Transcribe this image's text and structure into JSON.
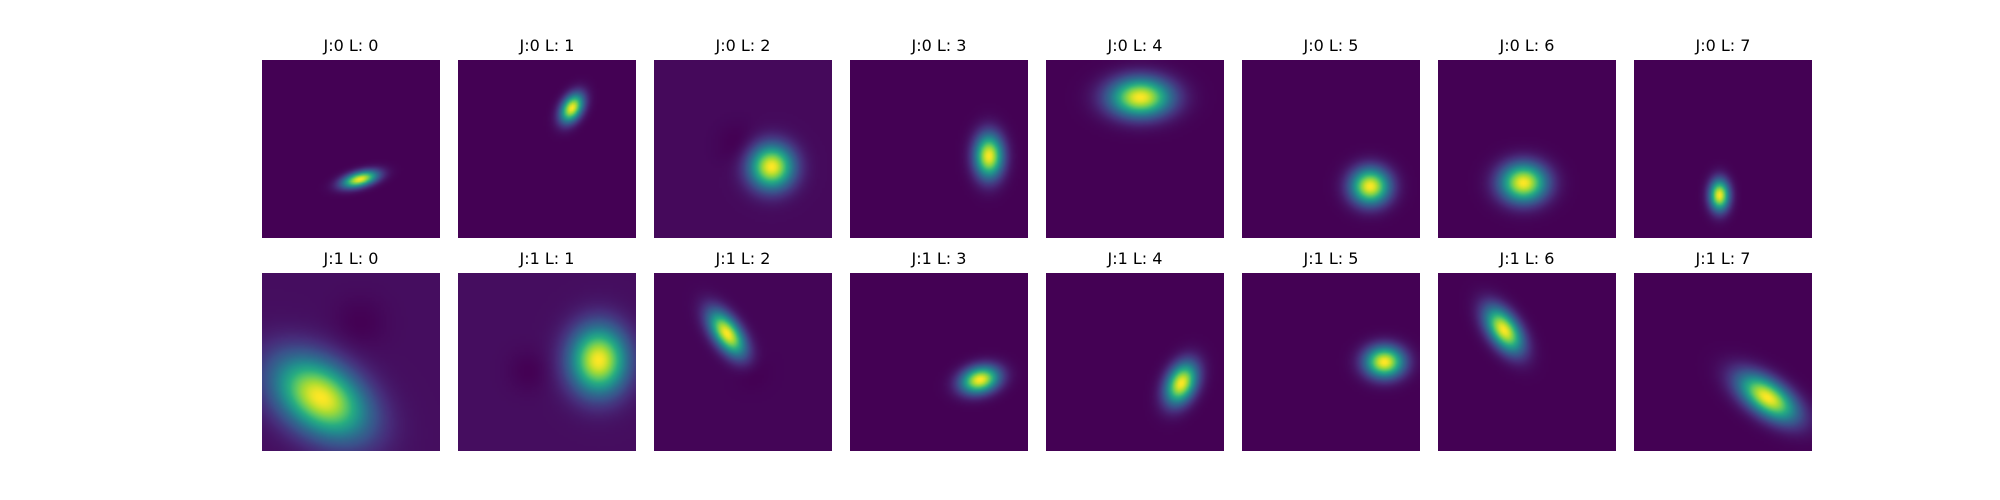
{
  "chart_data": {
    "type": "heatmap",
    "colormap": "viridis",
    "rows": 2,
    "columns": 8,
    "background_color": "#440154",
    "peak_color": "#fde725",
    "panels": [
      {
        "title": "J:0 L: 0",
        "blobs": [
          {
            "center": [
              0.55,
              0.67
            ],
            "sigma": [
              0.028,
              0.07
            ],
            "angle": 75,
            "amplitude": 1.0
          }
        ],
        "background_level": 0.0,
        "negative_lobe": null
      },
      {
        "title": "J:0 L: 1",
        "blobs": [
          {
            "center": [
              0.64,
              0.27
            ],
            "sigma": [
              0.06,
              0.038
            ],
            "angle": -60,
            "amplitude": 1.0
          }
        ],
        "background_level": 0.0,
        "negative_lobe": null
      },
      {
        "title": "J:0 L: 2",
        "blobs": [
          {
            "center": [
              0.66,
              0.6
            ],
            "sigma": [
              0.085,
              0.085
            ],
            "angle": 0,
            "amplitude": 1.0
          }
        ],
        "background_level": 0.05,
        "negative_lobe": {
          "center": [
            0.48,
            0.48
          ],
          "sigma": [
            0.08,
            0.08
          ],
          "amplitude": -0.04
        }
      },
      {
        "title": "J:0 L: 3",
        "blobs": [
          {
            "center": [
              0.78,
              0.54
            ],
            "sigma": [
              0.055,
              0.085
            ],
            "angle": 0,
            "amplitude": 1.0
          }
        ],
        "background_level": 0.0,
        "negative_lobe": null
      },
      {
        "title": "J:0 L: 4",
        "blobs": [
          {
            "center": [
              0.53,
              0.21
            ],
            "sigma": [
              0.12,
              0.075
            ],
            "angle": 0,
            "amplitude": 1.0
          }
        ],
        "background_level": 0.0,
        "negative_lobe": null
      },
      {
        "title": "J:0 L: 5",
        "blobs": [
          {
            "center": [
              0.72,
              0.71
            ],
            "sigma": [
              0.075,
              0.07
            ],
            "angle": 0,
            "amplitude": 1.0
          }
        ],
        "background_level": 0.0,
        "negative_lobe": null
      },
      {
        "title": "J:0 L: 6",
        "blobs": [
          {
            "center": [
              0.48,
              0.69
            ],
            "sigma": [
              0.09,
              0.075
            ],
            "angle": 0,
            "amplitude": 1.0
          }
        ],
        "background_level": 0.0,
        "negative_lobe": null
      },
      {
        "title": "J:0 L: 7",
        "blobs": [
          {
            "center": [
              0.48,
              0.76
            ],
            "sigma": [
              0.038,
              0.06
            ],
            "angle": 0,
            "amplitude": 1.0
          }
        ],
        "background_level": 0.0,
        "negative_lobe": null
      },
      {
        "title": "J:1 L: 0",
        "blobs": [
          {
            "center": [
              0.33,
              0.7
            ],
            "sigma": [
              0.2,
              0.13
            ],
            "angle": 35,
            "amplitude": 1.0
          }
        ],
        "background_level": 0.08,
        "negative_lobe": {
          "center": [
            0.55,
            0.28
          ],
          "sigma": [
            0.1,
            0.1
          ],
          "amplitude": -0.04
        }
      },
      {
        "title": "J:1 L: 1",
        "blobs": [
          {
            "center": [
              0.79,
              0.49
            ],
            "sigma": [
              0.11,
              0.13
            ],
            "angle": 0,
            "amplitude": 1.0
          }
        ],
        "background_level": 0.05,
        "negative_lobe": {
          "center": [
            0.4,
            0.55
          ],
          "sigma": [
            0.08,
            0.08
          ],
          "amplitude": -0.04
        }
      },
      {
        "title": "J:1 L: 2",
        "blobs": [
          {
            "center": [
              0.41,
              0.34
            ],
            "sigma": [
              0.1,
              0.05
            ],
            "angle": 55,
            "amplitude": 1.0
          }
        ],
        "background_level": 0.05,
        "negative_lobe": {
          "center": [
            0.55,
            0.55
          ],
          "sigma": [
            0.06,
            0.06
          ],
          "amplitude": -0.03
        }
      },
      {
        "title": "J:1 L: 3",
        "blobs": [
          {
            "center": [
              0.73,
              0.6
            ],
            "sigma": [
              0.075,
              0.05
            ],
            "angle": -15,
            "amplitude": 1.0
          }
        ],
        "background_level": 0.0,
        "negative_lobe": null
      },
      {
        "title": "J:1 L: 4",
        "blobs": [
          {
            "center": [
              0.76,
              0.62
            ],
            "sigma": [
              0.055,
              0.085
            ],
            "angle": 25,
            "amplitude": 1.0
          }
        ],
        "background_level": 0.0,
        "negative_lobe": null
      },
      {
        "title": "J:1 L: 5",
        "blobs": [
          {
            "center": [
              0.8,
              0.5
            ],
            "sigma": [
              0.075,
              0.06
            ],
            "angle": 0,
            "amplitude": 1.0
          }
        ],
        "background_level": 0.0,
        "negative_lobe": null
      },
      {
        "title": "J:1 L: 6",
        "blobs": [
          {
            "center": [
              0.37,
              0.32
            ],
            "sigma": [
              0.1,
              0.055
            ],
            "angle": 55,
            "amplitude": 1.0
          }
        ],
        "background_level": 0.0,
        "negative_lobe": null
      },
      {
        "title": "J:1 L: 7",
        "blobs": [
          {
            "center": [
              0.75,
              0.7
            ],
            "sigma": [
              0.13,
              0.065
            ],
            "angle": 35,
            "amplitude": 1.0
          }
        ],
        "background_level": 0.0,
        "negative_lobe": null
      }
    ]
  }
}
